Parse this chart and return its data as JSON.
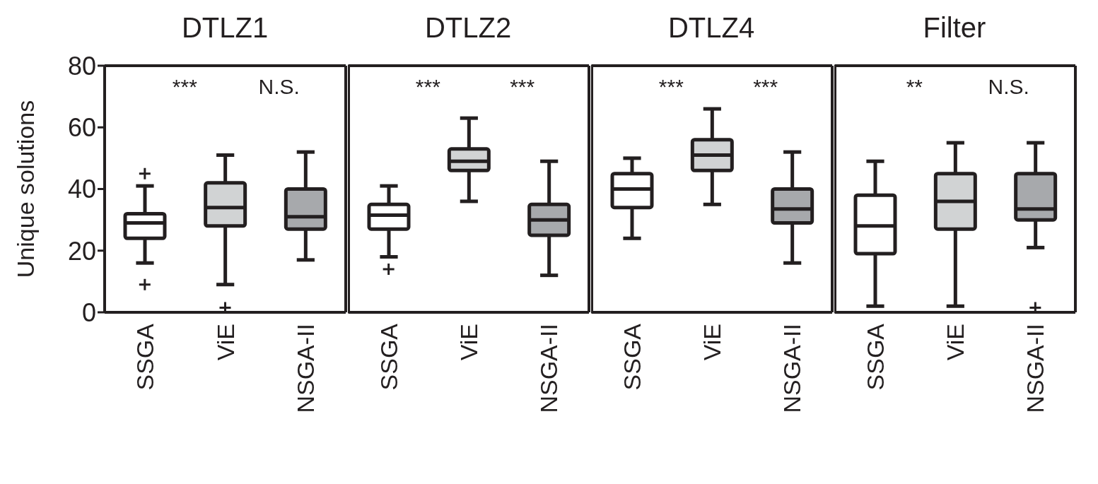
{
  "chart_data": [
    {
      "type": "box",
      "title": "DTLZ1",
      "ylabel": "Unique solutions",
      "categories": [
        "SSGA",
        "ViE",
        "NSGA-II"
      ],
      "colors": [
        "#ffffff",
        "#d1d3d4",
        "#a7a9ac"
      ],
      "ylim": [
        0,
        80
      ],
      "yticks": [
        0,
        20,
        40,
        60,
        80
      ],
      "annotations": [
        "***",
        "N.S."
      ],
      "boxes": [
        {
          "low": 16,
          "q1": 24,
          "median": 29,
          "q3": 32,
          "high": 41,
          "outliers": [
            45,
            9
          ]
        },
        {
          "low": 9,
          "q1": 28,
          "median": 34,
          "q3": 42,
          "high": 51,
          "outliers": [
            1.5
          ]
        },
        {
          "low": 17,
          "q1": 27,
          "median": 31,
          "q3": 40,
          "high": 52
        }
      ]
    },
    {
      "type": "box",
      "title": "DTLZ2",
      "categories": [
        "SSGA",
        "ViE",
        "NSGA-II"
      ],
      "colors": [
        "#ffffff",
        "#d1d3d4",
        "#a7a9ac"
      ],
      "ylim": [
        0,
        80
      ],
      "yticks": [
        0,
        20,
        40,
        60,
        80
      ],
      "tick_labels": "x",
      "annotations": [
        "***",
        "***"
      ],
      "boxes": [
        {
          "low": 18,
          "q1": 27,
          "median": 31.5,
          "q3": 35,
          "high": 41,
          "outliers": [
            14
          ]
        },
        {
          "low": 36,
          "q1": 46,
          "median": 49,
          "q3": 53,
          "high": 63
        },
        {
          "low": 12,
          "q1": 25,
          "median": 30,
          "q3": 35,
          "high": 49
        }
      ]
    },
    {
      "type": "box",
      "title": "DTLZ4",
      "categories": [
        "SSGA",
        "ViE",
        "NSGA-II"
      ],
      "colors": [
        "#ffffff",
        "#d1d3d4",
        "#a7a9ac"
      ],
      "ylim": [
        0,
        80
      ],
      "yticks": [
        0,
        20,
        40,
        60,
        80
      ],
      "tick_labels": "x",
      "annotations": [
        "***",
        "***"
      ],
      "boxes": [
        {
          "low": 24,
          "q1": 34,
          "median": 40,
          "q3": 45,
          "high": 50
        },
        {
          "low": 35,
          "q1": 46,
          "median": 51,
          "q3": 56,
          "high": 66
        },
        {
          "low": 16,
          "q1": 29,
          "median": 33.5,
          "q3": 40,
          "high": 52
        }
      ]
    },
    {
      "type": "box",
      "title": "Filter",
      "categories": [
        "SSGA",
        "ViE",
        "NSGA-II"
      ],
      "colors": [
        "#ffffff",
        "#d1d3d4",
        "#a7a9ac"
      ],
      "ylim": [
        0,
        80
      ],
      "yticks": [
        0,
        20,
        40,
        60,
        80
      ],
      "tick_labels": "x",
      "annotations": [
        "**",
        "N.S."
      ],
      "boxes": [
        {
          "low": 2,
          "q1": 19,
          "median": 28,
          "q3": 38,
          "high": 49
        },
        {
          "low": 2,
          "q1": 27,
          "median": 36,
          "q3": 45,
          "high": 55
        },
        {
          "low": 21,
          "q1": 30,
          "median": 33.5,
          "q3": 45,
          "high": 55,
          "outliers": [
            1.5
          ]
        }
      ]
    }
  ]
}
